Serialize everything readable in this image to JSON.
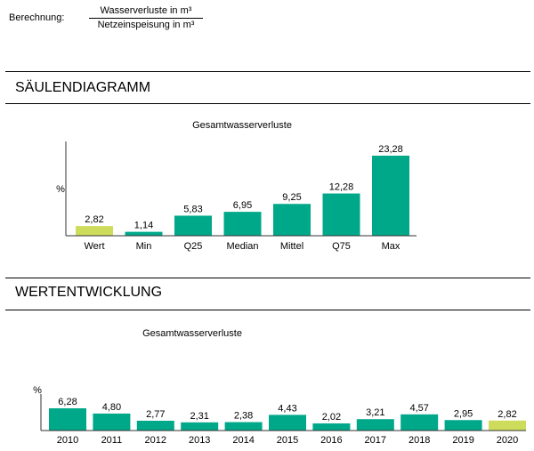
{
  "formula": {
    "label": "Berechnung:",
    "numerator": "Wasserverluste in m³",
    "denominator": "Netzeinspeisung in m³"
  },
  "sections": {
    "bar_title": "SÄULENDIAGRAMM",
    "trend_title": "WERTENTWICKLUNG"
  },
  "colors": {
    "teal": "#00a88a",
    "lime": "#cddd5b",
    "axis": "#333333"
  },
  "chart_data": [
    {
      "type": "bar",
      "title": "Gesamtwasserverluste",
      "ylabel": "%",
      "xlabel": "",
      "categories": [
        "Wert",
        "Min",
        "Q25",
        "Median",
        "Mittel",
        "Q75",
        "Max"
      ],
      "values": [
        2.82,
        1.14,
        5.83,
        6.95,
        9.25,
        12.28,
        23.28
      ],
      "labels": [
        "2,82",
        "1,14",
        "5,83",
        "6,95",
        "9,25",
        "12,28",
        "23,28"
      ],
      "highlight_index": 0,
      "ylim": [
        0,
        23.28
      ]
    },
    {
      "type": "bar",
      "title": "Gesamtwasserverluste",
      "ylabel": "%",
      "xlabel": "",
      "categories": [
        "2010",
        "2011",
        "2012",
        "2013",
        "2014",
        "2015",
        "2016",
        "2017",
        "2018",
        "2019",
        "2020"
      ],
      "values": [
        6.28,
        4.8,
        2.77,
        2.31,
        2.38,
        4.43,
        2.02,
        3.21,
        4.57,
        2.95,
        2.82
      ],
      "labels": [
        "6,28",
        "4,80",
        "2,77",
        "2,31",
        "2,38",
        "4,43",
        "2,02",
        "3,21",
        "4,57",
        "2,95",
        "2,82"
      ],
      "highlight_index": 10,
      "ylim": [
        0,
        6.28
      ]
    }
  ]
}
